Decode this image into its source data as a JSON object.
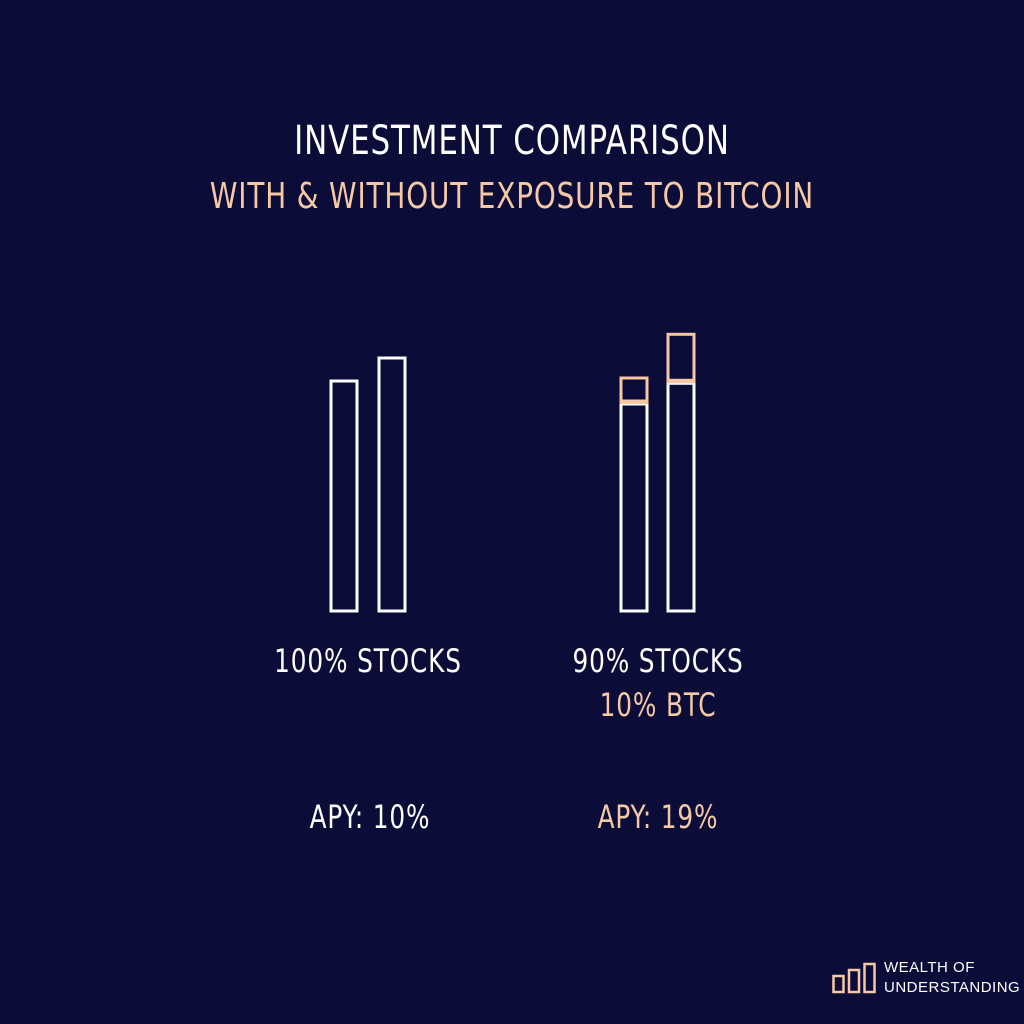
{
  "title": "INVESTMENT COMPARISON",
  "subtitle": "WITH & WITHOUT EXPOSURE TO BITCOIN",
  "colors": {
    "background": "#0b0c38",
    "stocks": "#ffffff",
    "btc": "#f6c9a4"
  },
  "chart_data": {
    "type": "bar",
    "title": "INVESTMENT COMPARISON",
    "subtitle": "WITH & WITHOUT EXPOSURE TO BITCOIN",
    "grid": false,
    "groups": [
      {
        "label": "100% STOCKS",
        "label_line2": "",
        "apy": "APY: 10%",
        "bars": [
          {
            "stocks": 100,
            "btc": 0
          },
          {
            "stocks": 110,
            "btc": 0
          }
        ]
      },
      {
        "label": "90% STOCKS",
        "label_line2": "10% BTC",
        "apy": "APY: 19%",
        "bars": [
          {
            "stocks": 90,
            "btc": 10
          },
          {
            "stocks": 99,
            "btc": 20
          }
        ]
      }
    ],
    "ylim": [
      0,
      120
    ]
  },
  "logo": {
    "line1": "WEALTH OF",
    "line2": "UNDERSTANDING",
    "icon": "bar-chart-icon"
  }
}
